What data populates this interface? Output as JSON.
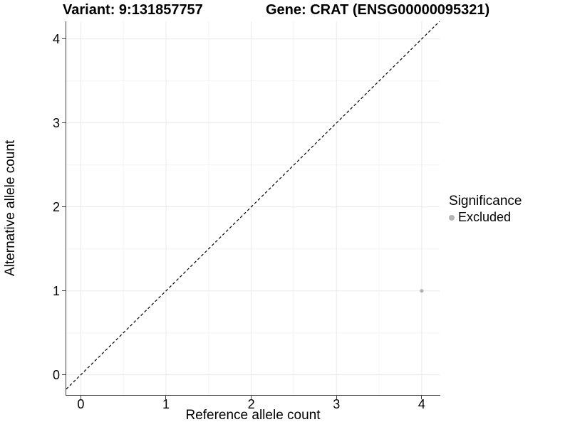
{
  "titles": {
    "variant": "Variant: 9:131857757",
    "gene": "Gene: CRAT (ENSG00000095321)"
  },
  "legend": {
    "title": "Significance",
    "items": [
      {
        "label": "Excluded",
        "color": "#B3B3B3"
      }
    ]
  },
  "chart_data": {
    "type": "scatter",
    "title": "Variant: 9:131857757 | Gene: CRAT (ENSG00000095321)",
    "xlabel": "Reference allele count",
    "ylabel": "Alternative allele count",
    "xlim": [
      -0.17,
      4.21
    ],
    "ylim": [
      -0.24,
      4.21
    ],
    "x_ticks": [
      0,
      1,
      2,
      3,
      4
    ],
    "y_ticks": [
      0,
      1,
      2,
      3,
      4
    ],
    "grid": "major+minor",
    "legend_position": "right",
    "series": [
      {
        "name": "Excluded",
        "color": "#B3B3B3",
        "point_radius": 2.6,
        "points": [
          {
            "x": 4,
            "y": 1
          }
        ]
      }
    ],
    "reference_line": {
      "type": "identity y=x",
      "style": "dashed",
      "color": "#000000"
    }
  },
  "colors": {
    "background": "#FFFFFF",
    "axis_line": "#404040",
    "tick_mark": "#404040",
    "grid_major": "#E9E9E9",
    "grid_minor": "#F4F4F4",
    "text": "#000000"
  }
}
